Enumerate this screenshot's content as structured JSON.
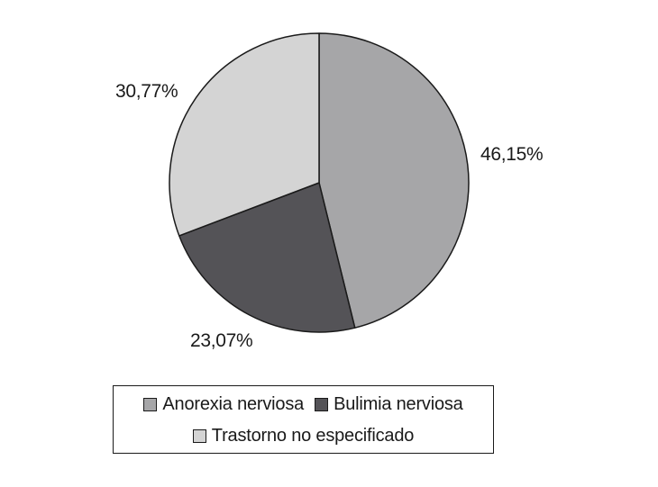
{
  "chart_data": {
    "type": "pie",
    "title": "",
    "legend_position": "bottom",
    "series": [
      {
        "name": "Anorexia nerviosa",
        "value": 46.15,
        "label": "46,15%",
        "color": "#a6a6a8"
      },
      {
        "name": "Bulimia nerviosa",
        "value": 23.07,
        "label": "23,07%",
        "color": "#545357"
      },
      {
        "name": "Trastorno no especificado",
        "value": 30.77,
        "label": "30,77%",
        "color": "#d4d4d4"
      }
    ],
    "start_angle": "12 o'clock",
    "direction": "clockwise",
    "outline_color": "#1a1a1a"
  }
}
